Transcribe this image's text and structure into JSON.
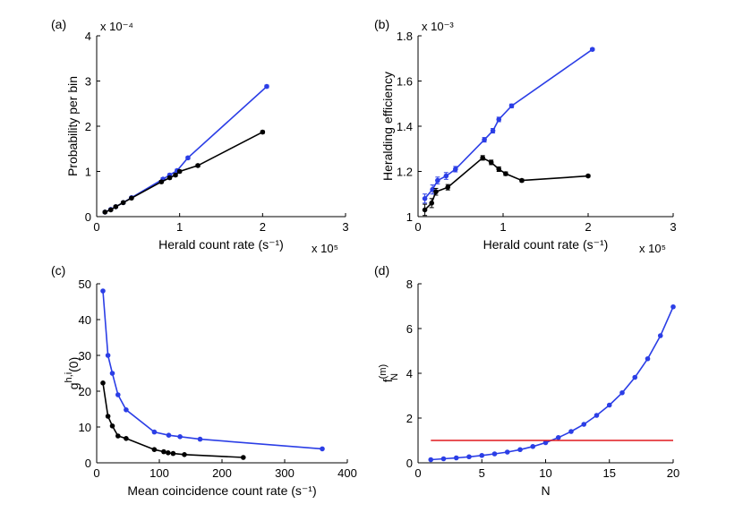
{
  "chart_data": [
    {
      "id": "a",
      "type": "line",
      "panel_label": "(a)",
      "xlabel": "Herald count rate (s⁻¹)",
      "ylabel": "Probability per bin",
      "xlim": [
        0,
        3
      ],
      "ylim": [
        0,
        4
      ],
      "xticks": [
        0,
        1,
        2,
        3
      ],
      "yticks": [
        0,
        1,
        2,
        3,
        4
      ],
      "x_multiplier": "x 10⁵",
      "y_multiplier": "x 10⁻⁴",
      "series": [
        {
          "name": "blue",
          "color": "#2b3ee6",
          "x": [
            0.1,
            0.17,
            0.23,
            0.32,
            0.42,
            0.8,
            0.88,
            0.97,
            1.1,
            2.05
          ],
          "y": [
            0.1,
            0.16,
            0.22,
            0.31,
            0.42,
            0.83,
            0.92,
            1.02,
            1.3,
            2.88
          ],
          "yerr": [
            0.02,
            0.02,
            0.02,
            0.02,
            0.02,
            0.03,
            0.03,
            0.03,
            0.03,
            0.03
          ]
        },
        {
          "name": "black",
          "color": "#000000",
          "x": [
            0.1,
            0.17,
            0.23,
            0.32,
            0.42,
            0.78,
            0.88,
            0.95,
            1.0,
            1.22,
            2.0
          ],
          "y": [
            0.1,
            0.15,
            0.22,
            0.31,
            0.41,
            0.77,
            0.86,
            0.92,
            1.0,
            1.13,
            1.87
          ],
          "yerr": [
            0.02,
            0.02,
            0.02,
            0.02,
            0.02,
            0.03,
            0.03,
            0.03,
            0.03,
            0.03,
            0.03
          ]
        }
      ]
    },
    {
      "id": "b",
      "type": "line",
      "panel_label": "(b)",
      "xlabel": "Herald count rate (s⁻¹)",
      "ylabel": "Heralding efficiency",
      "xlim": [
        0,
        3
      ],
      "ylim": [
        1.0,
        1.8
      ],
      "xticks": [
        0,
        1,
        2,
        3
      ],
      "yticks": [
        1,
        1.2,
        1.4,
        1.6,
        1.8
      ],
      "x_multiplier": "x 10⁵",
      "y_multiplier": "x 10⁻³",
      "series": [
        {
          "name": "blue",
          "color": "#2b3ee6",
          "x": [
            0.08,
            0.17,
            0.23,
            0.33,
            0.44,
            0.78,
            0.88,
            0.95,
            1.1,
            2.05
          ],
          "y": [
            1.08,
            1.12,
            1.16,
            1.18,
            1.21,
            1.34,
            1.38,
            1.43,
            1.49,
            1.74
          ],
          "yerr": [
            0.02,
            0.02,
            0.015,
            0.015,
            0.012,
            0.01,
            0.01,
            0.01,
            0.008,
            0.005
          ]
        },
        {
          "name": "black",
          "color": "#000000",
          "x": [
            0.08,
            0.16,
            0.21,
            0.35,
            0.76,
            0.86,
            0.95,
            1.03,
            1.22,
            2.0
          ],
          "y": [
            1.03,
            1.06,
            1.11,
            1.13,
            1.26,
            1.24,
            1.21,
            1.19,
            1.16,
            1.18
          ],
          "yerr": [
            0.025,
            0.02,
            0.015,
            0.012,
            0.01,
            0.01,
            0.01,
            0.008,
            0.006,
            0.005
          ]
        }
      ]
    },
    {
      "id": "c",
      "type": "line",
      "panel_label": "(c)",
      "xlabel": "Mean coincidence count rate (s⁻¹)",
      "ylabel": "g",
      "ylabel_sup": "h,i",
      "ylabel_tail": "(0)",
      "xlim": [
        0,
        400
      ],
      "ylim": [
        0,
        50
      ],
      "xticks": [
        0,
        100,
        200,
        300,
        400
      ],
      "yticks": [
        0,
        10,
        20,
        30,
        40,
        50
      ],
      "series": [
        {
          "name": "blue",
          "color": "#2b3ee6",
          "x": [
            10,
            18,
            25,
            34,
            47,
            92,
            115,
            133,
            165,
            360
          ],
          "y": [
            48,
            30,
            25,
            19,
            14.8,
            8.6,
            7.7,
            7.3,
            6.6,
            3.9
          ]
        },
        {
          "name": "black",
          "color": "#000000",
          "x": [
            10,
            18,
            25,
            34,
            47,
            92,
            107,
            114,
            122,
            140,
            234
          ],
          "y": [
            22.3,
            13,
            10.3,
            7.5,
            6.8,
            3.7,
            3.1,
            2.8,
            2.6,
            2.3,
            1.5
          ]
        }
      ]
    },
    {
      "id": "d",
      "type": "line",
      "panel_label": "(d)",
      "xlabel": "N",
      "ylabel": "f",
      "ylabel_sup": "(m)",
      "ylabel_sub": "N",
      "xlim": [
        0,
        20
      ],
      "ylim": [
        0,
        8
      ],
      "xticks": [
        0,
        5,
        10,
        15,
        20
      ],
      "yticks": [
        0,
        2,
        4,
        6,
        8
      ],
      "series": [
        {
          "name": "blue",
          "color": "#2b3ee6",
          "x": [
            1,
            2,
            3,
            4,
            5,
            6,
            7,
            8,
            9,
            10,
            11,
            12,
            13,
            14,
            15,
            16,
            17,
            18,
            19,
            20
          ],
          "y": [
            0.14,
            0.18,
            0.22,
            0.27,
            0.33,
            0.4,
            0.48,
            0.59,
            0.73,
            0.9,
            1.13,
            1.4,
            1.72,
            2.12,
            2.58,
            3.13,
            3.82,
            4.65,
            5.68,
            6.97
          ]
        },
        {
          "name": "red",
          "color": "#e0191e",
          "markers": false,
          "x": [
            1,
            20
          ],
          "y": [
            1,
            1
          ]
        }
      ]
    }
  ]
}
